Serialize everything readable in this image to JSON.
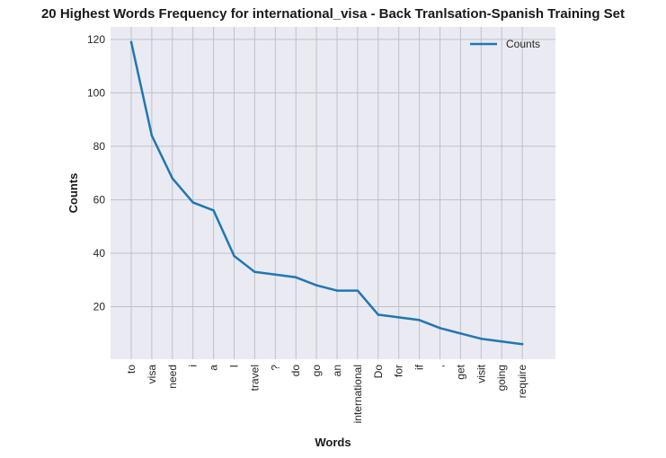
{
  "chart_data": {
    "type": "line",
    "title": "20 Highest Words Frequency for international_visa - Back Tranlsation-Spanish Training Set",
    "xlabel": "Words",
    "ylabel": "Counts",
    "categories": [
      "to",
      "visa",
      "need",
      "i",
      "a",
      "I",
      "travel",
      "?",
      "do",
      "go",
      "an",
      "international",
      "Do",
      "for",
      "if",
      ",",
      "get",
      "visit",
      "going",
      "require"
    ],
    "series": [
      {
        "name": "Counts",
        "color": "#1f77b4",
        "values": [
          119,
          84,
          68,
          59,
          56,
          39,
          33,
          32,
          31,
          28,
          26,
          26,
          17,
          16,
          15,
          12,
          10,
          8,
          7,
          6
        ]
      }
    ],
    "yticks": [
      20,
      40,
      60,
      80,
      100,
      120
    ],
    "ylim": [
      0.35,
      124.65
    ],
    "grid": true,
    "legend_position": "upper right",
    "background": "#eaeaf2",
    "grid_color": "#c0c0c8"
  }
}
